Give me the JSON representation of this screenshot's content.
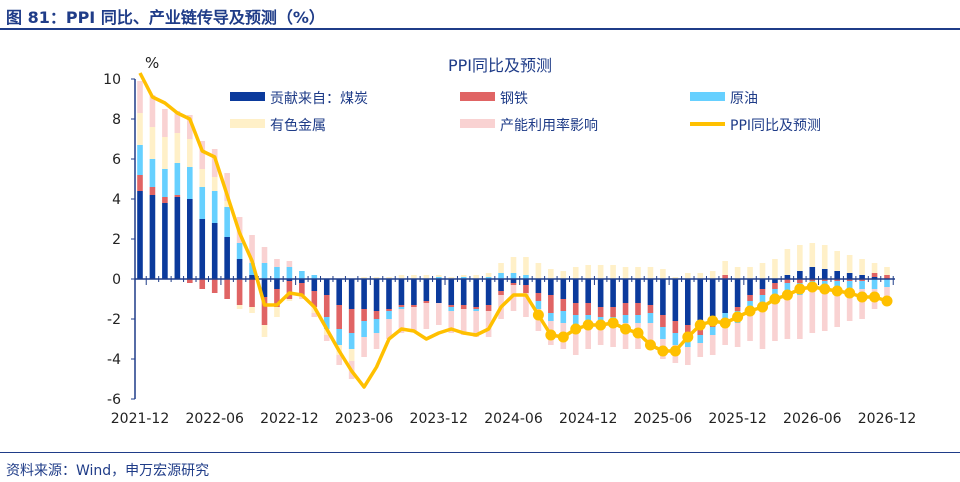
{
  "header": {
    "title": "图 81：PPI 同比、产业链传导及预测（%）"
  },
  "footer": {
    "source": "资料来源：Wind，申万宏源研究"
  },
  "chart_data": {
    "type": "bar",
    "title": "PPI同比及预测",
    "ylabel": "%",
    "ylim": [
      -6,
      10
    ],
    "yticks": [
      -6,
      -4,
      -2,
      0,
      2,
      4,
      6,
      8,
      10
    ],
    "xtick_labels": [
      "2021-12",
      "2022-06",
      "2022-12",
      "2023-06",
      "2023-12",
      "2024-06",
      "2024-12",
      "2025-06",
      "2025-12",
      "2026-06",
      "2026-12"
    ],
    "start_month": "2021-12",
    "end_month": "2026-12",
    "forecast_start": "2024-08",
    "legend_placement": "top",
    "colors": {
      "coal": "#0b3a9c",
      "steel": "#e06464",
      "oil": "#66d0ff",
      "nonferrous": "#fff0c8",
      "capacity": "#f9d2d2",
      "ppi": "#ffc000"
    },
    "series": [
      {
        "key": "coal",
        "name": "贡献来自：煤炭",
        "values": [
          4.4,
          4.2,
          3.8,
          4.1,
          4.0,
          3.0,
          2.8,
          2.1,
          1.0,
          0.2,
          -0.9,
          -0.5,
          -0.1,
          -0.2,
          -0.6,
          -0.8,
          -1.3,
          -1.5,
          -1.5,
          -1.6,
          -1.5,
          -1.3,
          -1.3,
          -1.1,
          -1.2,
          -1.3,
          -1.3,
          -1.4,
          -1.3,
          -0.6,
          -0.2,
          -0.3,
          -0.7,
          -0.8,
          -1.0,
          -1.2,
          -1.2,
          -1.4,
          -1.4,
          -1.2,
          -1.2,
          -1.3,
          -1.8,
          -2.1,
          -2.3,
          -2.3,
          -1.9,
          -1.7,
          -1.4,
          -0.8,
          -0.5,
          -0.2,
          0.2,
          0.4,
          0.6,
          0.5,
          0.4,
          0.3,
          0.2,
          0.1,
          0.0
        ]
      },
      {
        "key": "steel",
        "name": "钢铁",
        "values": [
          0.8,
          0.4,
          0.3,
          0.1,
          -0.2,
          -0.5,
          -0.7,
          -1.0,
          -1.3,
          -1.4,
          -1.4,
          -0.9,
          -0.9,
          -0.6,
          -0.8,
          -1.1,
          -1.2,
          -1.2,
          -0.6,
          -0.4,
          -0.1,
          -0.1,
          -0.1,
          -0.1,
          0.0,
          -0.1,
          -0.2,
          -0.1,
          -0.3,
          -0.2,
          -0.1,
          -0.4,
          -0.4,
          -0.9,
          -0.6,
          -0.6,
          -0.6,
          -0.5,
          -0.5,
          -0.6,
          -0.6,
          -0.4,
          -0.6,
          -0.6,
          -0.5,
          -0.5,
          -0.5,
          0.2,
          -0.2,
          -0.3,
          -0.3,
          -0.3,
          -0.2,
          -0.2,
          -0.1,
          -0.1,
          -0.1,
          -0.1,
          -0.1,
          0.2,
          0.2
        ]
      },
      {
        "key": "oil",
        "name": "原油",
        "values": [
          1.5,
          1.4,
          1.4,
          1.6,
          1.6,
          1.6,
          1.6,
          1.5,
          0.8,
          0.6,
          0.8,
          0.6,
          0.6,
          0.4,
          0.2,
          -0.6,
          -0.8,
          -0.8,
          -0.8,
          -0.7,
          -0.4,
          -0.1,
          0.0,
          0.0,
          0.1,
          -0.2,
          0.1,
          -0.1,
          0.1,
          0.3,
          0.3,
          0.2,
          -0.4,
          -0.4,
          -0.6,
          -0.6,
          -0.5,
          -0.3,
          -0.3,
          -0.4,
          -0.4,
          -0.5,
          -0.6,
          -0.6,
          -0.6,
          -0.4,
          -0.4,
          -0.5,
          -0.6,
          -0.5,
          -0.7,
          -0.6,
          -0.6,
          -0.6,
          -0.5,
          -0.5,
          -0.4,
          -0.4,
          -0.4,
          -0.5,
          -0.4
        ]
      },
      {
        "key": "nonferrous",
        "name": "有色金属",
        "values": [
          1.6,
          1.6,
          1.6,
          1.5,
          1.4,
          0.9,
          0.7,
          0.3,
          -0.2,
          -0.3,
          -0.6,
          -0.5,
          -0.1,
          -0.1,
          -0.3,
          -0.3,
          -0.5,
          -0.6,
          0.1,
          0.1,
          0.1,
          0.2,
          0.2,
          0.2,
          0.1,
          0.1,
          0.1,
          0.2,
          0.2,
          0.5,
          0.8,
          0.9,
          0.8,
          0.5,
          0.4,
          0.6,
          0.7,
          0.7,
          0.7,
          0.6,
          0.6,
          0.6,
          0.5,
          0.1,
          0.3,
          0.3,
          0.4,
          0.7,
          0.6,
          0.6,
          0.8,
          1.0,
          1.3,
          1.3,
          1.2,
          1.2,
          1.0,
          0.9,
          0.8,
          0.5,
          0.4
        ]
      },
      {
        "key": "capacity",
        "name": "产能利用率影响",
        "values": [
          1.6,
          1.6,
          1.4,
          1.1,
          1.2,
          1.4,
          1.4,
          1.4,
          1.3,
          1.4,
          0.8,
          0.4,
          0.3,
          -0.1,
          -0.2,
          -0.3,
          -0.5,
          -0.9,
          -1.0,
          -0.8,
          -1.0,
          -1.2,
          -1.2,
          -1.3,
          -1.1,
          -1.1,
          -1.3,
          -1.3,
          -1.3,
          -1.2,
          -1.3,
          -1.2,
          -1.1,
          -1.2,
          -1.3,
          -1.4,
          -1.2,
          -1.1,
          -1.2,
          -1.3,
          -1.3,
          -1.2,
          -1.0,
          -0.9,
          -0.9,
          -0.7,
          -1.0,
          -1.1,
          -1.2,
          -1.5,
          -2.0,
          -2.0,
          -2.2,
          -2.2,
          -2.1,
          -2.0,
          -1.9,
          -1.6,
          -1.5,
          -1.0,
          -0.7
        ]
      }
    ],
    "line": {
      "name": "PPI同比及预测",
      "values": [
        10.3,
        9.1,
        8.8,
        8.3,
        8.0,
        6.4,
        6.1,
        4.2,
        2.3,
        0.9,
        -1.3,
        -1.3,
        -0.7,
        -0.8,
        -1.4,
        -2.5,
        -3.6,
        -4.6,
        -5.4,
        -4.4,
        -3.0,
        -2.5,
        -2.6,
        -3.0,
        -2.7,
        -2.5,
        -2.7,
        -2.8,
        -2.5,
        -1.4,
        -0.8,
        -0.8,
        -1.8,
        -2.8,
        -2.9,
        -2.5,
        -2.3,
        -2.3,
        -2.2,
        -2.5,
        -2.7,
        -3.3,
        -3.6,
        -3.6,
        -2.9,
        -2.3,
        -2.1,
        -2.2,
        -1.9,
        -1.6,
        -1.4,
        -1.0,
        -0.8,
        -0.5,
        -0.4,
        -0.5,
        -0.6,
        -0.7,
        -0.9,
        -0.9,
        -1.1
      ]
    }
  }
}
